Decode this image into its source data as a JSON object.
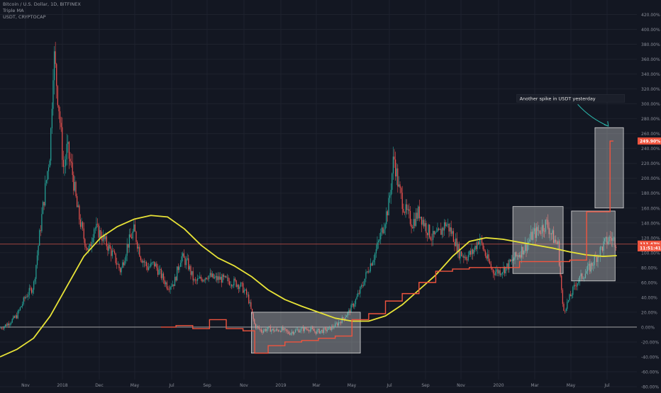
{
  "header": {
    "symbol_line": "Bitcoin / U.S. Dollar, 1D, BITFINEX",
    "indicator_line": "Triple MA",
    "compare_line": "USDT, CRYPTOCAP"
  },
  "annotation": {
    "text": "Another spike in USDT yesterday"
  },
  "price_badges": [
    {
      "label": "249.90%",
      "value": 250,
      "color": "#f0543e"
    },
    {
      "label": "111.47%",
      "value": 111.5,
      "color": "#f0543e"
    },
    {
      "label": "11:51:41",
      "value": 106.5,
      "color": "#f0543e"
    }
  ],
  "colors": {
    "background": "#131722",
    "grid": "#1e222d",
    "candle_up": "#26a69a",
    "candle_down": "#ef5350",
    "ma": "#e8e337",
    "usdt": "#f0543e",
    "box_fill": "rgba(210,210,210,0.38)",
    "box_stroke": "#d8d8d8",
    "zero_line": "#c8c8c8",
    "annotation_arrow": "#2bb3a8"
  },
  "chart_data": {
    "type": "line",
    "title": "Bitcoin / U.S. Dollar, 1D, BITFINEX",
    "ylabel": "",
    "y_unit": "%",
    "ylim": [
      -80,
      430
    ],
    "grid": true,
    "x_ticks": [
      "Nov",
      "2018",
      "Dec",
      "May",
      "Jul",
      "Sep",
      "Nov",
      "2019",
      "Mar",
      "May",
      "Jul",
      "Sep",
      "Nov",
      "2020",
      "Mar",
      "May",
      "Jul"
    ],
    "y_ticks": [
      "420.00%",
      "400.00%",
      "380.00%",
      "360.00%",
      "340.00%",
      "320.00%",
      "300.00%",
      "280.00%",
      "260.00%",
      "240.00%",
      "220.00%",
      "200.00%",
      "180.00%",
      "160.00%",
      "140.00%",
      "120.00%",
      "100.00%",
      "80.00%",
      "60.00%",
      "40.00%",
      "20.00%",
      "0.00%",
      "-20.00%",
      "-40.00%",
      "-60.00%",
      "-80.00%"
    ],
    "x_domain": [
      0,
      38
    ],
    "series": [
      {
        "name": "Bitcoin / U.S. Dollar",
        "kind": "candles",
        "points": [
          [
            0,
            -2
          ],
          [
            0.5,
            5
          ],
          [
            1,
            15
          ],
          [
            1.5,
            40
          ],
          [
            2,
            55
          ],
          [
            2.5,
            150
          ],
          [
            3,
            240
          ],
          [
            3.2,
            370
          ],
          [
            3.5,
            300
          ],
          [
            3.8,
            210
          ],
          [
            4,
            240
          ],
          [
            4.3,
            210
          ],
          [
            4.6,
            160
          ],
          [
            5,
            120
          ],
          [
            5.3,
            100
          ],
          [
            5.6,
            135
          ],
          [
            6,
            125
          ],
          [
            6.4,
            110
          ],
          [
            6.8,
            95
          ],
          [
            7.2,
            75
          ],
          [
            7.6,
            110
          ],
          [
            8,
            130
          ],
          [
            8.4,
            95
          ],
          [
            8.8,
            80
          ],
          [
            9.2,
            85
          ],
          [
            9.6,
            70
          ],
          [
            10,
            55
          ],
          [
            10.4,
            60
          ],
          [
            10.8,
            95
          ],
          [
            11.2,
            85
          ],
          [
            11.6,
            60
          ],
          [
            12,
            65
          ],
          [
            12.4,
            70
          ],
          [
            12.8,
            65
          ],
          [
            13.2,
            65
          ],
          [
            13.6,
            62
          ],
          [
            14,
            60
          ],
          [
            14.4,
            55
          ],
          [
            14.8,
            40
          ],
          [
            15.2,
            2
          ],
          [
            15.6,
            -5
          ],
          [
            16,
            -2
          ],
          [
            16.4,
            -5
          ],
          [
            16.8,
            -3
          ],
          [
            17.2,
            -8
          ],
          [
            17.6,
            -5
          ],
          [
            18,
            -3
          ],
          [
            18.4,
            -2
          ],
          [
            18.8,
            -6
          ],
          [
            19.2,
            -5
          ],
          [
            19.6,
            -3
          ],
          [
            20,
            2
          ],
          [
            20.4,
            10
          ],
          [
            20.8,
            20
          ],
          [
            21.2,
            35
          ],
          [
            21.6,
            55
          ],
          [
            22,
            80
          ],
          [
            22.4,
            100
          ],
          [
            22.8,
            130
          ],
          [
            23.2,
            165
          ],
          [
            23.5,
            230
          ],
          [
            23.8,
            185
          ],
          [
            24.2,
            155
          ],
          [
            24.6,
            140
          ],
          [
            25,
            155
          ],
          [
            25.4,
            135
          ],
          [
            25.8,
            120
          ],
          [
            26.2,
            125
          ],
          [
            26.6,
            140
          ],
          [
            27,
            125
          ],
          [
            27.4,
            100
          ],
          [
            27.8,
            95
          ],
          [
            28.2,
            100
          ],
          [
            28.6,
            120
          ],
          [
            29,
            95
          ],
          [
            29.4,
            75
          ],
          [
            29.8,
            75
          ],
          [
            30.2,
            80
          ],
          [
            30.6,
            90
          ],
          [
            31,
            100
          ],
          [
            31.4,
            110
          ],
          [
            31.8,
            125
          ],
          [
            32.2,
            130
          ],
          [
            32.6,
            140
          ],
          [
            33,
            120
          ],
          [
            33.3,
            110
          ],
          [
            33.6,
            20
          ],
          [
            34,
            40
          ],
          [
            34.4,
            60
          ],
          [
            34.8,
            70
          ],
          [
            35.2,
            80
          ],
          [
            35.6,
            95
          ],
          [
            36,
            110
          ],
          [
            36.4,
            120
          ],
          [
            36.8,
            114
          ]
        ]
      },
      {
        "name": "Triple MA",
        "kind": "line",
        "points": [
          [
            0,
            -40
          ],
          [
            1,
            -30
          ],
          [
            2,
            -15
          ],
          [
            3,
            15
          ],
          [
            4,
            55
          ],
          [
            5,
            95
          ],
          [
            6,
            120
          ],
          [
            7,
            135
          ],
          [
            8,
            145
          ],
          [
            9,
            150
          ],
          [
            10,
            148
          ],
          [
            11,
            132
          ],
          [
            12,
            110
          ],
          [
            13,
            93
          ],
          [
            14,
            82
          ],
          [
            15,
            68
          ],
          [
            16,
            50
          ],
          [
            17,
            37
          ],
          [
            18,
            28
          ],
          [
            19,
            20
          ],
          [
            20,
            12
          ],
          [
            21,
            8
          ],
          [
            22,
            8
          ],
          [
            23,
            15
          ],
          [
            24,
            30
          ],
          [
            25,
            50
          ],
          [
            26,
            70
          ],
          [
            27,
            95
          ],
          [
            28,
            115
          ],
          [
            29,
            120
          ],
          [
            30,
            118
          ],
          [
            31,
            114
          ],
          [
            32,
            110
          ],
          [
            33,
            106
          ],
          [
            34,
            101
          ],
          [
            35,
            97
          ],
          [
            36,
            95
          ],
          [
            36.8,
            96
          ]
        ]
      },
      {
        "name": "USDT, CRYPTOCAP",
        "kind": "step",
        "points": [
          [
            9.6,
            0
          ],
          [
            10.5,
            2
          ],
          [
            11.5,
            -2
          ],
          [
            12.5,
            10
          ],
          [
            13.5,
            -2
          ],
          [
            14.5,
            -5
          ],
          [
            15.2,
            -35
          ],
          [
            16,
            -25
          ],
          [
            17,
            -20
          ],
          [
            18,
            -18
          ],
          [
            19,
            -15
          ],
          [
            20,
            -12
          ],
          [
            21,
            10
          ],
          [
            22,
            18
          ],
          [
            23,
            35
          ],
          [
            24,
            45
          ],
          [
            25,
            60
          ],
          [
            26,
            75
          ],
          [
            27,
            78
          ],
          [
            28,
            80
          ],
          [
            29,
            80
          ],
          [
            30,
            80
          ],
          [
            31,
            88
          ],
          [
            32,
            88
          ],
          [
            33,
            88
          ],
          [
            34,
            90
          ],
          [
            35,
            155
          ],
          [
            36,
            155
          ],
          [
            36.4,
            250
          ]
        ]
      }
    ],
    "highlight_boxes": [
      {
        "x0": 15.0,
        "x1": 21.5,
        "y0": -35,
        "y1": 20
      },
      {
        "x0": 30.6,
        "x1": 33.6,
        "y0": 72,
        "y1": 162
      },
      {
        "x0": 34.1,
        "x1": 36.7,
        "y0": 62,
        "y1": 156
      },
      {
        "x0": 35.5,
        "x1": 37.2,
        "y0": 160,
        "y1": 268
      }
    ],
    "reference_lines": [
      {
        "value": 0,
        "color": "#c8c8c8"
      },
      {
        "value": 111.5,
        "color": "#e05a4e"
      }
    ],
    "annotations": [
      {
        "text": "Another spike in USDT yesterday",
        "x": 31.0,
        "y": 305,
        "arrow_to": [
          36.3,
          270
        ]
      }
    ]
  }
}
